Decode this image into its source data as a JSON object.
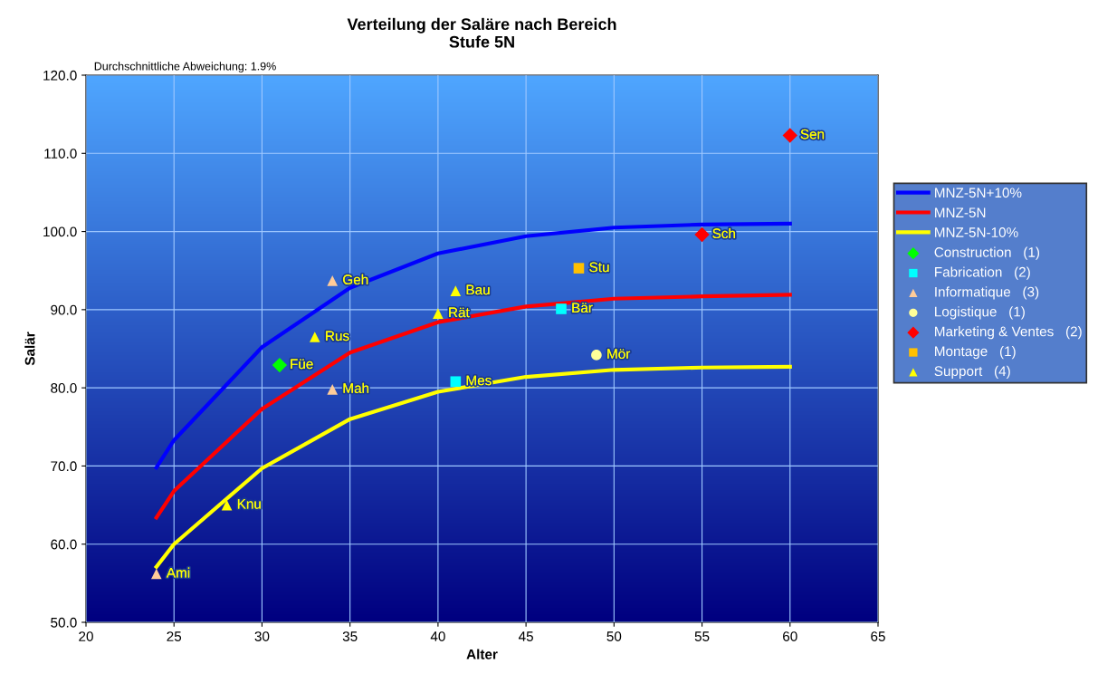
{
  "chart_data": {
    "type": "scatter",
    "title": "Verteilung der Saläre nach Bereich\nStufe 5N",
    "xlabel": "Alter",
    "ylabel": "Salär",
    "xlim": [
      20,
      65
    ],
    "xticks": [
      20,
      25,
      30,
      35,
      40,
      45,
      50,
      55,
      60,
      65
    ],
    "ylim": [
      50,
      120
    ],
    "yticks": [
      {
        "value": 50,
        "label": "50.0"
      },
      {
        "value": 60,
        "label": "60.0"
      },
      {
        "value": 70,
        "label": "70.0"
      },
      {
        "value": 80,
        "label": "80.0"
      },
      {
        "value": 90,
        "label": "90.0"
      },
      {
        "value": 100,
        "label": "100.0"
      },
      {
        "value": 110,
        "label": "110.0"
      },
      {
        "value": 120,
        "label": "120.0"
      }
    ],
    "grid": true,
    "legend": "right",
    "series": [
      {
        "name": "MNZ-5N+10%",
        "type": "line",
        "marker": "none",
        "color": "#0000ff",
        "x": [
          24,
          25,
          30,
          35,
          40,
          45,
          50,
          55,
          60
        ],
        "values": [
          69.8,
          73.3,
          85.2,
          92.8,
          97.2,
          99.4,
          100.5,
          100.9,
          101.0
        ]
      },
      {
        "name": "MNZ-5N",
        "type": "line",
        "marker": "none",
        "color": "#ff0000",
        "x": [
          24,
          25,
          30,
          35,
          40,
          45,
          50,
          55,
          60
        ],
        "values": [
          63.4,
          66.8,
          77.3,
          84.5,
          88.4,
          90.4,
          91.4,
          91.7,
          91.9
        ]
      },
      {
        "name": "MNZ-5N-10%",
        "type": "line",
        "marker": "none",
        "color": "#ffff00",
        "x": [
          24,
          25,
          30,
          35,
          40,
          45,
          50,
          55,
          60
        ],
        "values": [
          57.1,
          60.0,
          69.7,
          76.0,
          79.5,
          81.4,
          82.3,
          82.6,
          82.7
        ]
      },
      {
        "name": "Construction   (1)",
        "marker": "diamond",
        "color": "#00ff00",
        "x": [
          31
        ],
        "values": [
          82.9
        ]
      },
      {
        "name": "Fabrication   (2)",
        "marker": "square",
        "color": "#00ffff",
        "x": [
          41,
          47
        ],
        "values": [
          80.8,
          90.1
        ]
      },
      {
        "name": "Informatique   (3)",
        "marker": "triangle",
        "color": "#ffcc99",
        "x": [
          24,
          34,
          34
        ],
        "values": [
          56.2,
          93.7,
          79.8
        ]
      },
      {
        "name": "Logistique   (1)",
        "marker": "circle",
        "color": "#ffff99",
        "x": [
          49
        ],
        "values": [
          84.2
        ]
      },
      {
        "name": "Marketing & Ventes   (2)",
        "marker": "diamond",
        "color": "#ff0000",
        "x": [
          55,
          60
        ],
        "values": [
          99.6,
          112.3
        ]
      },
      {
        "name": "Montage   (1)",
        "marker": "square",
        "color": "#ffc000",
        "x": [
          48
        ],
        "values": [
          95.3
        ]
      },
      {
        "name": "Support   (4)",
        "marker": "triangle",
        "color": "#ffff00",
        "x": [
          28,
          33,
          40,
          41
        ],
        "values": [
          65.0,
          86.5,
          89.5,
          92.4
        ]
      }
    ],
    "annotations": [
      "Durchschnittliche Abweichung: 1.9%",
      {
        "text": "Füe",
        "x": 31,
        "y": 82.9
      },
      {
        "text": "Mes",
        "x": 41,
        "y": 80.8
      },
      {
        "text": "Bär",
        "x": 47,
        "y": 90.1
      },
      {
        "text": "Ami",
        "x": 24,
        "y": 56.2
      },
      {
        "text": "Geh",
        "x": 34,
        "y": 93.7
      },
      {
        "text": "Mah",
        "x": 34,
        "y": 79.8
      },
      {
        "text": "Mör",
        "x": 49,
        "y": 84.2
      },
      {
        "text": "Sch",
        "x": 55,
        "y": 99.6
      },
      {
        "text": "Sen",
        "x": 60,
        "y": 112.3
      },
      {
        "text": "Stu",
        "x": 48,
        "y": 95.3
      },
      {
        "text": "Knu",
        "x": 28,
        "y": 65.0
      },
      {
        "text": "Rus",
        "x": 33,
        "y": 86.5
      },
      {
        "text": "Rät",
        "x": 40,
        "y": 89.5
      },
      {
        "text": "Bau",
        "x": 41,
        "y": 92.4
      }
    ]
  }
}
